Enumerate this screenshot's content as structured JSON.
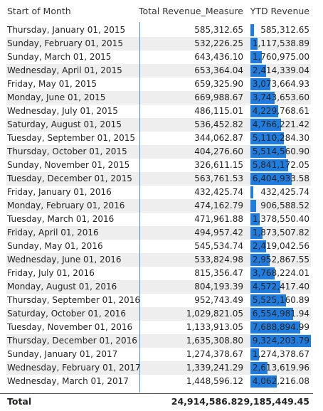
{
  "table": {
    "headers": {
      "month": "Start of Month",
      "revenue": "Total Revenue_Measure",
      "ytd": "YTD Revenue"
    },
    "bar_color": "#1f7de0",
    "ytd_bar_max": 9324203.79,
    "rows": [
      {
        "month": "Thursday, January 01, 2015",
        "revenue": "585,312.65",
        "ytd": "585,312.65",
        "ytd_value": 585312.65
      },
      {
        "month": "Sunday, February 01, 2015",
        "revenue": "532,226.25",
        "ytd": "1,117,538.89",
        "ytd_value": 1117538.89
      },
      {
        "month": "Sunday, March 01, 2015",
        "revenue": "643,436.10",
        "ytd": "1,760,975.00",
        "ytd_value": 1760975.0
      },
      {
        "month": "Wednesday, April 01, 2015",
        "revenue": "653,364.04",
        "ytd": "2,414,339.04",
        "ytd_value": 2414339.04
      },
      {
        "month": "Friday, May 01, 2015",
        "revenue": "659,325.90",
        "ytd": "3,073,664.93",
        "ytd_value": 3073664.93
      },
      {
        "month": "Monday, June 01, 2015",
        "revenue": "669,988.67",
        "ytd": "3,743,653.60",
        "ytd_value": 3743653.6
      },
      {
        "month": "Wednesday, July 01, 2015",
        "revenue": "486,115.01",
        "ytd": "4,229,768.61",
        "ytd_value": 4229768.61
      },
      {
        "month": "Saturday, August 01, 2015",
        "revenue": "536,452.82",
        "ytd": "4,766,221.42",
        "ytd_value": 4766221.42
      },
      {
        "month": "Tuesday, September 01, 2015",
        "revenue": "344,062.87",
        "ytd": "5,110,284.30",
        "ytd_value": 5110284.3
      },
      {
        "month": "Thursday, October 01, 2015",
        "revenue": "404,276.60",
        "ytd": "5,514,560.90",
        "ytd_value": 5514560.9
      },
      {
        "month": "Sunday, November 01, 2015",
        "revenue": "326,611.15",
        "ytd": "5,841,172.05",
        "ytd_value": 5841172.05
      },
      {
        "month": "Tuesday, December 01, 2015",
        "revenue": "563,761.53",
        "ytd": "6,404,933.58",
        "ytd_value": 6404933.58
      },
      {
        "month": "Friday, January 01, 2016",
        "revenue": "432,425.74",
        "ytd": "432,425.74",
        "ytd_value": 432425.74
      },
      {
        "month": "Monday, February 01, 2016",
        "revenue": "474,162.79",
        "ytd": "906,588.52",
        "ytd_value": 906588.52
      },
      {
        "month": "Tuesday, March 01, 2016",
        "revenue": "471,961.88",
        "ytd": "1,378,550.40",
        "ytd_value": 1378550.4
      },
      {
        "month": "Friday, April 01, 2016",
        "revenue": "494,957.42",
        "ytd": "1,873,507.82",
        "ytd_value": 1873507.82
      },
      {
        "month": "Sunday, May 01, 2016",
        "revenue": "545,534.74",
        "ytd": "2,419,042.56",
        "ytd_value": 2419042.56
      },
      {
        "month": "Wednesday, June 01, 2016",
        "revenue": "533,824.98",
        "ytd": "2,952,867.55",
        "ytd_value": 2952867.55
      },
      {
        "month": "Friday, July 01, 2016",
        "revenue": "815,356.47",
        "ytd": "3,768,224.01",
        "ytd_value": 3768224.01
      },
      {
        "month": "Monday, August 01, 2016",
        "revenue": "804,193.39",
        "ytd": "4,572,417.40",
        "ytd_value": 4572417.4
      },
      {
        "month": "Thursday, September 01, 2016",
        "revenue": "952,743.49",
        "ytd": "5,525,160.89",
        "ytd_value": 5525160.89
      },
      {
        "month": "Saturday, October 01, 2016",
        "revenue": "1,029,821.05",
        "ytd": "6,554,981.94",
        "ytd_value": 6554981.94
      },
      {
        "month": "Tuesday, November 01, 2016",
        "revenue": "1,133,913.05",
        "ytd": "7,688,894.99",
        "ytd_value": 7688894.99
      },
      {
        "month": "Thursday, December 01, 2016",
        "revenue": "1,635,308.80",
        "ytd": "9,324,203.79",
        "ytd_value": 9324203.79
      },
      {
        "month": "Sunday, January 01, 2017",
        "revenue": "1,274,378.67",
        "ytd": "1,274,378.67",
        "ytd_value": 1274378.67
      },
      {
        "month": "Wednesday, February 01, 2017",
        "revenue": "1,339,241.29",
        "ytd": "2,613,619.96",
        "ytd_value": 2613619.96
      },
      {
        "month": "Wednesday, March 01, 2017",
        "revenue": "1,448,596.12",
        "ytd": "4,062,216.08",
        "ytd_value": 4062216.08
      }
    ],
    "total": {
      "label": "Total",
      "revenue": "24,914,586.82",
      "ytd": "9,185,449.45"
    }
  }
}
